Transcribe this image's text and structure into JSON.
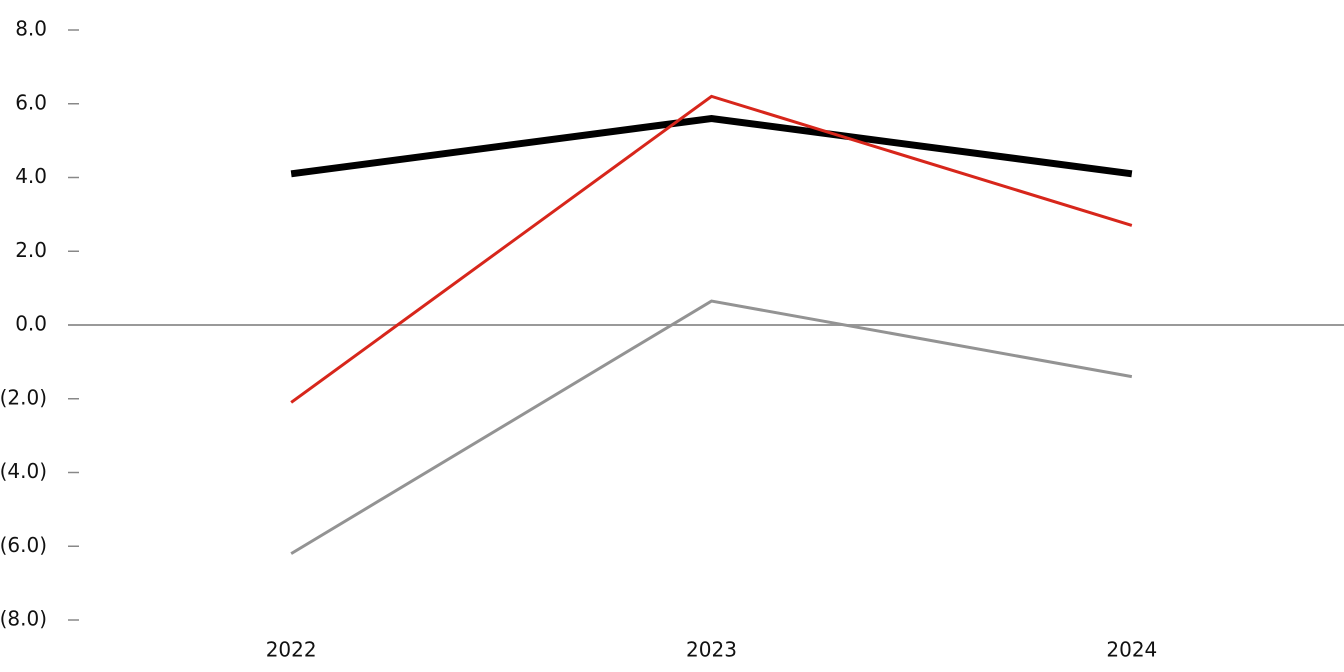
{
  "chart_data": {
    "type": "line",
    "categories": [
      "2022",
      "2023",
      "2024"
    ],
    "series": [
      {
        "color": "#000000",
        "values": [
          4.1,
          5.6,
          4.1
        ]
      },
      {
        "color": "#d7261b",
        "values": [
          -2.1,
          6.2,
          2.7
        ]
      },
      {
        "color": "#939393",
        "values": [
          -6.2,
          0.65,
          -1.4
        ]
      }
    ],
    "ylim": [
      -8,
      8
    ],
    "yticks": [
      {
        "value": 8,
        "label": "8.0"
      },
      {
        "value": 6,
        "label": "6.0"
      },
      {
        "value": 4,
        "label": "4.0"
      },
      {
        "value": 2,
        "label": "2.0"
      },
      {
        "value": 0,
        "label": "0.0"
      },
      {
        "value": -2,
        "label": "(2.0)"
      },
      {
        "value": -4,
        "label": "(4.0)"
      },
      {
        "value": -6,
        "label": "(6.0)"
      },
      {
        "value": -8,
        "label": "(8.0)"
      }
    ]
  }
}
